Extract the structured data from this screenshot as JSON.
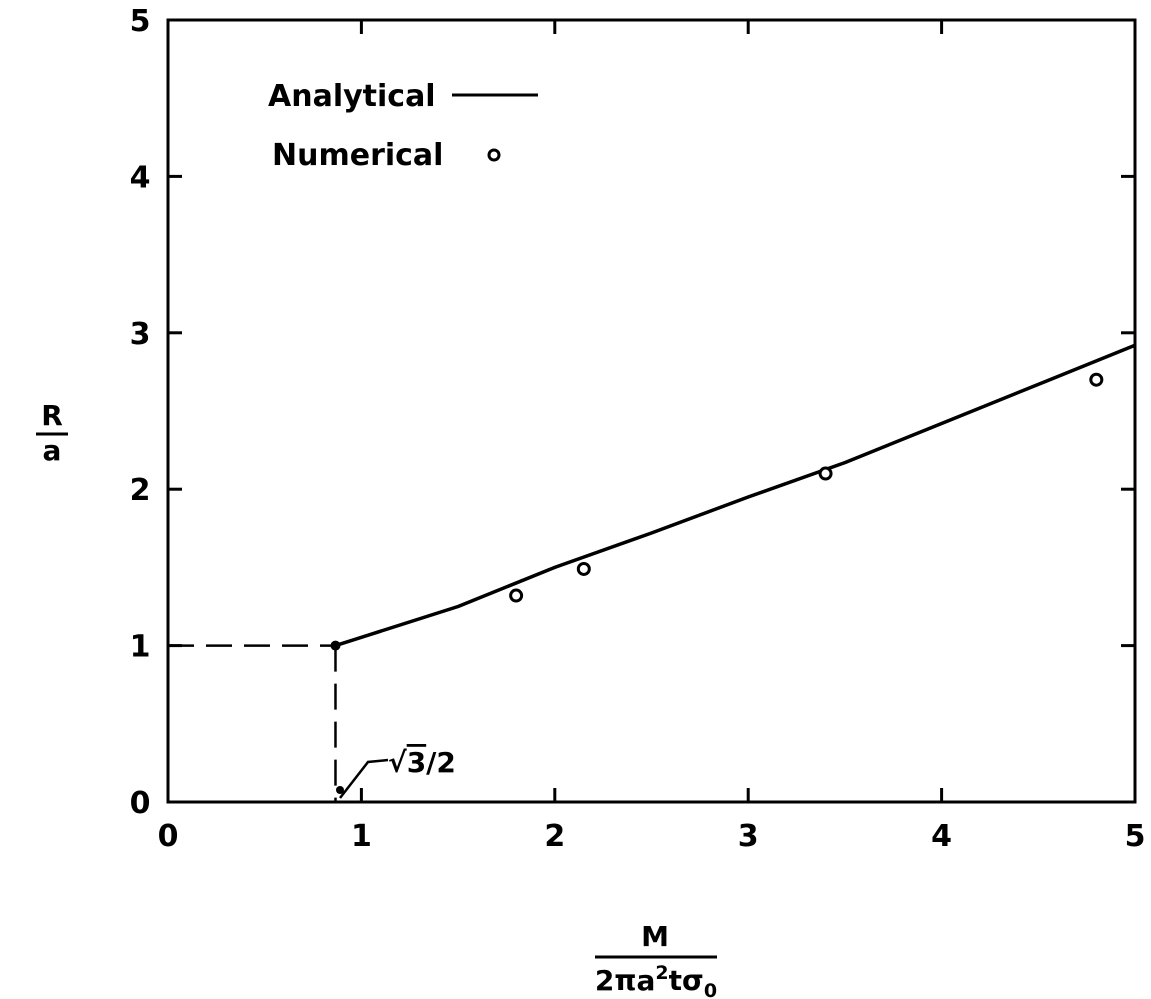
{
  "chart_data": {
    "type": "line",
    "title": "",
    "xlabel": {
      "numerator": "M",
      "denominator_base": "2πa",
      "denominator_exp": "2",
      "denominator_tail": "tσ",
      "denominator_sub": "0"
    },
    "ylabel": {
      "numerator": "R",
      "denominator": "a"
    },
    "xlim": [
      0,
      5
    ],
    "ylim": [
      0,
      5
    ],
    "x_ticks": [
      0,
      1,
      2,
      3,
      4,
      5
    ],
    "x_tick_labels": [
      "0",
      "1",
      "2",
      "3",
      "4",
      "5"
    ],
    "y_ticks": [
      0,
      1,
      2,
      3,
      4,
      5
    ],
    "y_tick_labels": [
      "0",
      "1",
      "2",
      "3",
      "4",
      "5"
    ],
    "grid": false,
    "legend_position": "top-left",
    "series": [
      {
        "name": "Analytical",
        "style": "line",
        "x": [
          0.866,
          1.5,
          2.0,
          2.5,
          3.0,
          3.5,
          4.0,
          4.5,
          5.0
        ],
        "y": [
          1.0,
          1.25,
          1.5,
          1.72,
          1.95,
          2.17,
          2.42,
          2.67,
          2.92
        ]
      },
      {
        "name": "Numerical",
        "style": "marker",
        "x": [
          1.8,
          2.15,
          3.4,
          4.8
        ],
        "y": [
          1.32,
          1.49,
          2.1,
          2.7
        ]
      }
    ],
    "reference": {
      "x": 0.866,
      "y": 1.0
    },
    "annotation": {
      "sqrt_symbol": "√",
      "radicand": "3",
      "rest": "/2"
    }
  }
}
